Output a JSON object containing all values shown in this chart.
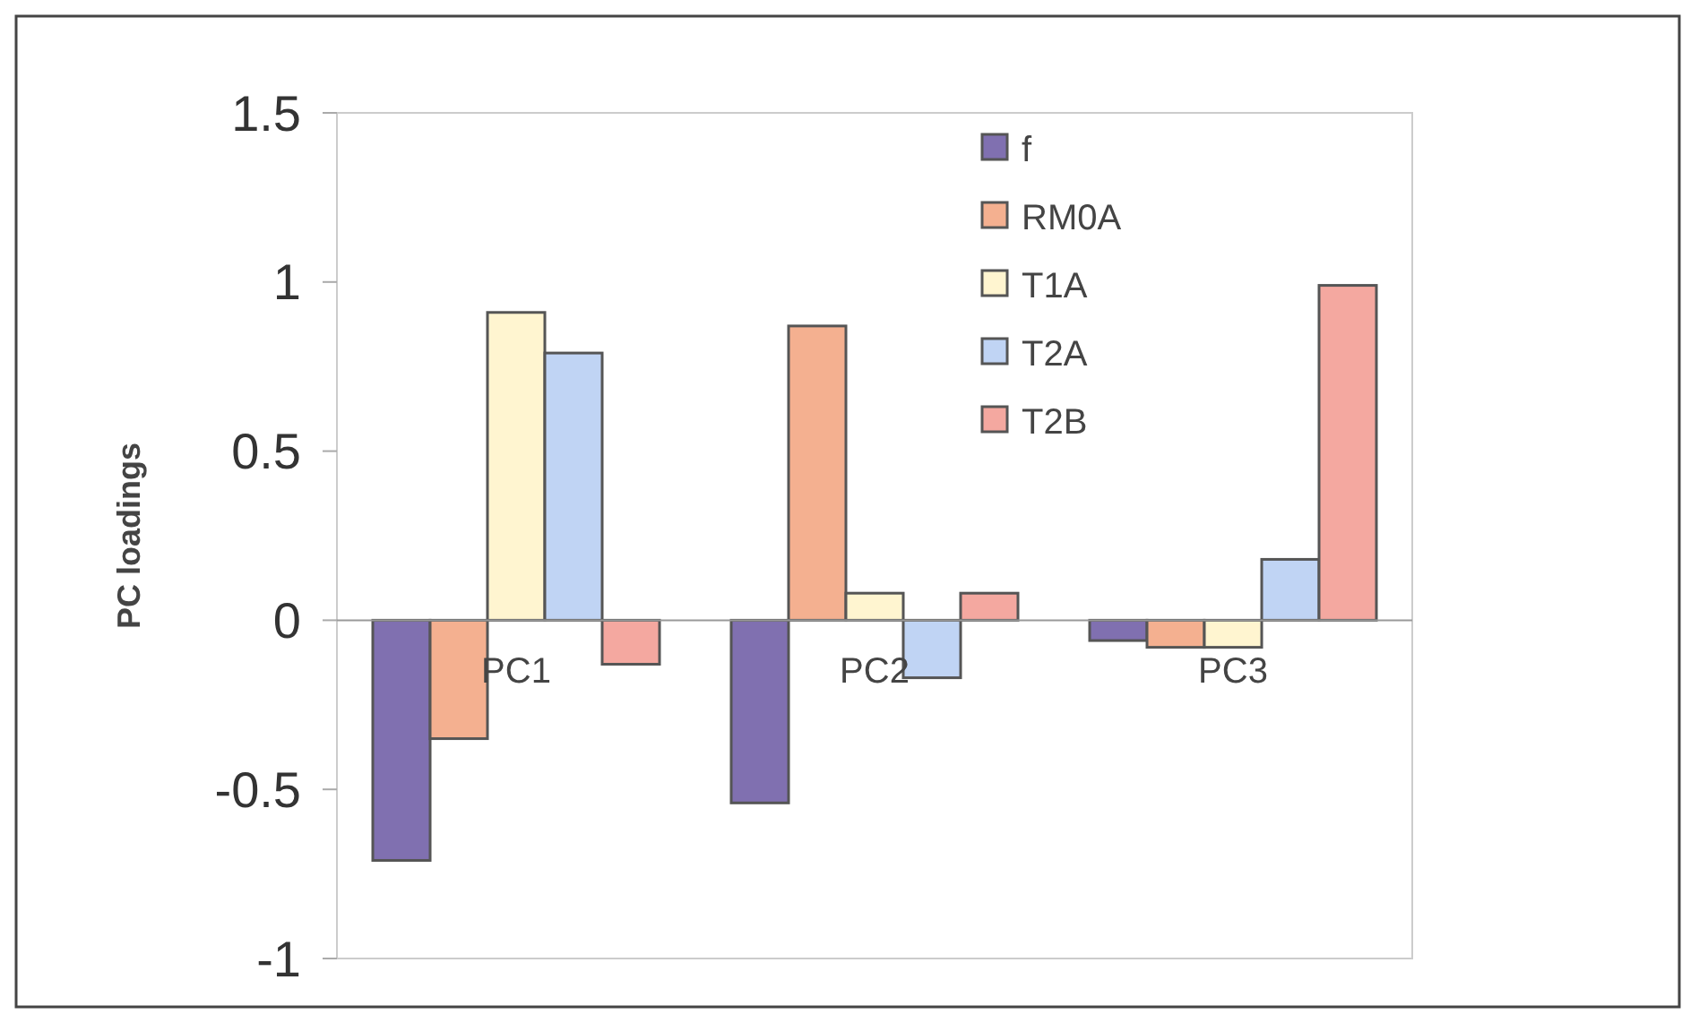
{
  "chart_data": {
    "type": "bar",
    "ylabel": "PC loadings",
    "categories": [
      "PC1",
      "PC2",
      "PC3"
    ],
    "series": [
      {
        "name": "f",
        "color": "#8070b0",
        "values": [
          -0.71,
          -0.54,
          -0.06
        ]
      },
      {
        "name": "RM0A",
        "color": "#f4b090",
        "values": [
          -0.35,
          0.87,
          -0.08
        ]
      },
      {
        "name": "T1A",
        "color": "#fff5d0",
        "values": [
          0.91,
          0.08,
          -0.08
        ]
      },
      {
        "name": "T2A",
        "color": "#c0d4f4",
        "values": [
          0.79,
          -0.17,
          0.18
        ]
      },
      {
        "name": "T2B",
        "color": "#f4a8a0",
        "values": [
          -0.13,
          0.08,
          0.99
        ]
      }
    ],
    "ylim": [
      -1,
      1.5
    ],
    "yticks": [
      -1,
      -0.5,
      0,
      0.5,
      1,
      1.5
    ],
    "legend": "top right"
  }
}
